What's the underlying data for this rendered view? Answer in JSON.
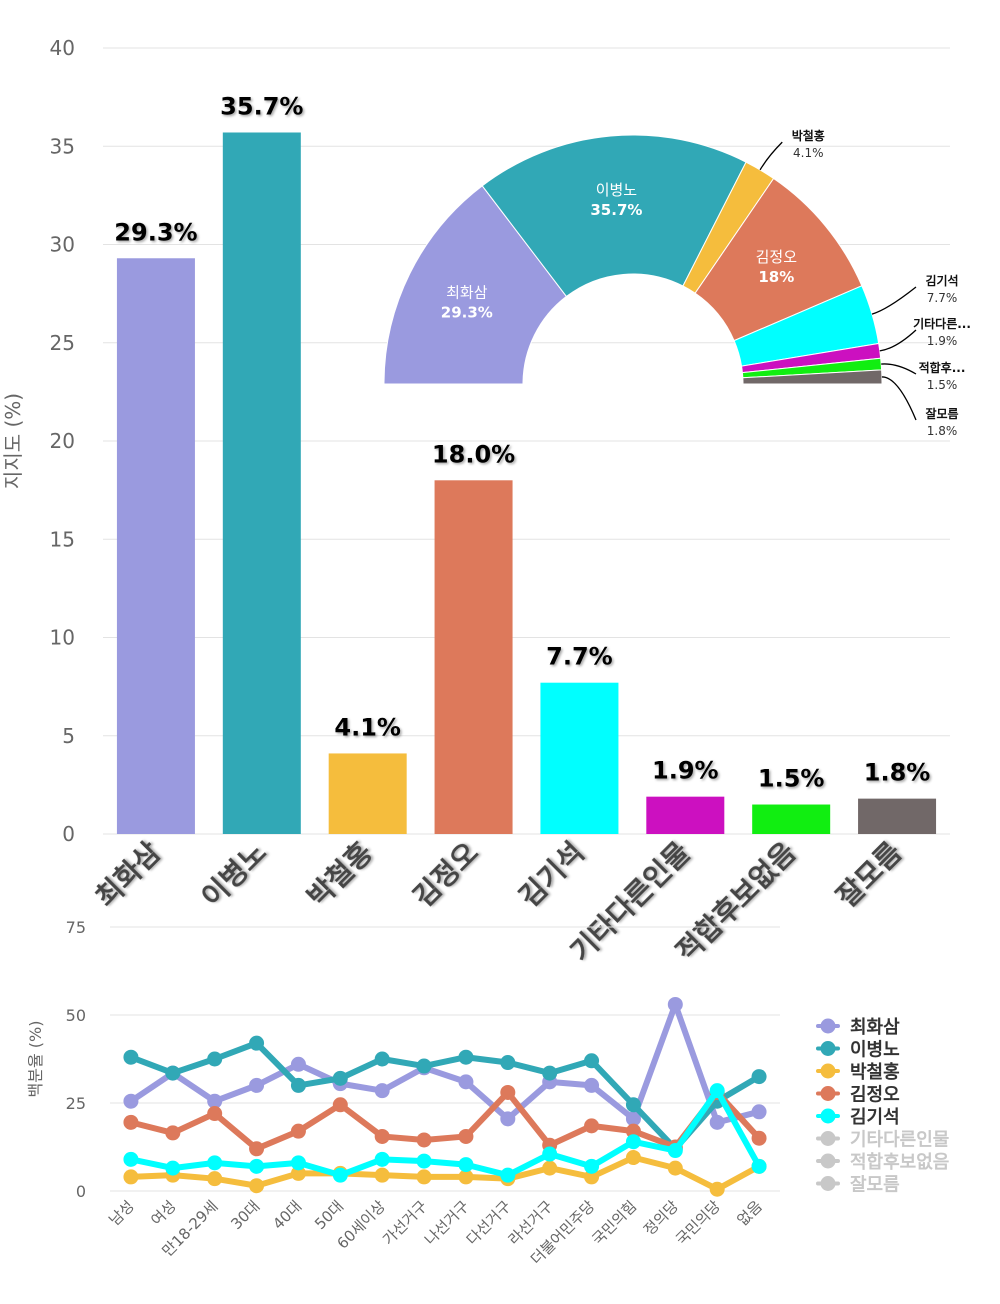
{
  "colors": {
    "최화삼": "#9a9adf",
    "이병노": "#31a8b6",
    "박철홍": "#f5bd3d",
    "김정오": "#dd795b",
    "김기석": "#00ffff",
    "기타다른인물": "#cc10c0",
    "적합후보없음": "#11ee11",
    "잘모름": "#716868",
    "inactive": "#c8c8c8",
    "grid": "#e3e3e3",
    "axis_text": "#666666"
  },
  "chart_data": [
    {
      "type": "bar",
      "categories": [
        "최화삼",
        "이병노",
        "박철홍",
        "김정오",
        "김기석",
        "기타다른인물",
        "적합후보없음",
        "잘모름"
      ],
      "values": [
        29.3,
        35.7,
        4.1,
        18.0,
        7.7,
        1.9,
        1.5,
        1.8
      ],
      "data_labels": [
        "29.3%",
        "35.7%",
        "4.1%",
        "18.0%",
        "7.7%",
        "1.9%",
        "1.5%",
        "1.8%"
      ],
      "ylabel": "지지도 (%)",
      "ylim": [
        0,
        40
      ],
      "yticks": [
        "0",
        "5",
        "10",
        "15",
        "20",
        "25",
        "30",
        "35",
        "40"
      ],
      "grid": true
    },
    {
      "type": "pie",
      "subtype": "semi-donut",
      "slices": [
        {
          "name": "최화삼",
          "value": 29.3,
          "label_name": "최화삼",
          "label_value": "29.3%",
          "label_pos": "inside"
        },
        {
          "name": "이병노",
          "value": 35.7,
          "label_name": "이병노",
          "label_value": "35.7%",
          "label_pos": "inside"
        },
        {
          "name": "박철홍",
          "value": 4.1,
          "label_name": "박철홍",
          "label_value": "4.1%",
          "label_pos": "outside"
        },
        {
          "name": "김정오",
          "value": 18,
          "label_name": "김정오",
          "label_value": "18%",
          "label_pos": "inside"
        },
        {
          "name": "김기석",
          "value": 7.7,
          "label_name": "김기석",
          "label_value": "7.7%",
          "label_pos": "outside"
        },
        {
          "name": "기타다른인물",
          "value": 1.9,
          "label_name": "기타다른...",
          "label_value": "1.9%",
          "label_pos": "outside"
        },
        {
          "name": "적합후보없음",
          "value": 1.5,
          "label_name": "적합후...",
          "label_value": "1.5%",
          "label_pos": "outside"
        },
        {
          "name": "잘모름",
          "value": 1.8,
          "label_name": "잘모름",
          "label_value": "1.8%",
          "label_pos": "outside"
        }
      ]
    },
    {
      "type": "line",
      "x": [
        "남성",
        "여성",
        "만18-29세",
        "30대",
        "40대",
        "50대",
        "60세이상",
        "가선거구",
        "나선거구",
        "다선거구",
        "라선거구",
        "더불어민주당",
        "국민의힘",
        "정의당",
        "국민의당",
        "없음"
      ],
      "ylabel": "백분율 (%)",
      "ylim": [
        0,
        75
      ],
      "yticks": [
        "0",
        "25",
        "50",
        "75"
      ],
      "series": [
        {
          "name": "최화삼",
          "visible": true,
          "values": [
            25.5,
            33.5,
            25.5,
            30,
            36,
            30.5,
            28.5,
            35,
            31,
            20.5,
            31,
            30,
            20.5,
            53,
            19.5,
            22.5
          ]
        },
        {
          "name": "이병노",
          "visible": true,
          "values": [
            38,
            33.5,
            37.5,
            42,
            30,
            32,
            37.5,
            35.5,
            38,
            36.5,
            33.5,
            37,
            24.5,
            12,
            25.5,
            32.5
          ]
        },
        {
          "name": "박철홍",
          "visible": true,
          "values": [
            4,
            4.5,
            3.5,
            1.5,
            5,
            5,
            4.5,
            4,
            4,
            3.5,
            6.5,
            4,
            9.5,
            6.5,
            0.5,
            7
          ]
        },
        {
          "name": "김정오",
          "visible": true,
          "values": [
            19.5,
            16.5,
            22,
            12,
            17,
            24.5,
            15.5,
            14.5,
            15.5,
            28,
            13,
            18.5,
            17,
            12.5,
            28,
            15
          ]
        },
        {
          "name": "김기석",
          "visible": true,
          "values": [
            9,
            6.5,
            8,
            7,
            8,
            4.5,
            9,
            8.5,
            7.5,
            4.5,
            10.5,
            7,
            14,
            11.5,
            28.5,
            7
          ]
        },
        {
          "name": "기타다른인물",
          "visible": false
        },
        {
          "name": "적합후보없음",
          "visible": false
        },
        {
          "name": "잘모름",
          "visible": false
        }
      ],
      "legend": [
        "최화삼",
        "이병노",
        "박철홍",
        "김정오",
        "김기석",
        "기타다른인물",
        "적합후보없음",
        "잘모름"
      ],
      "legend_position": "right"
    }
  ]
}
